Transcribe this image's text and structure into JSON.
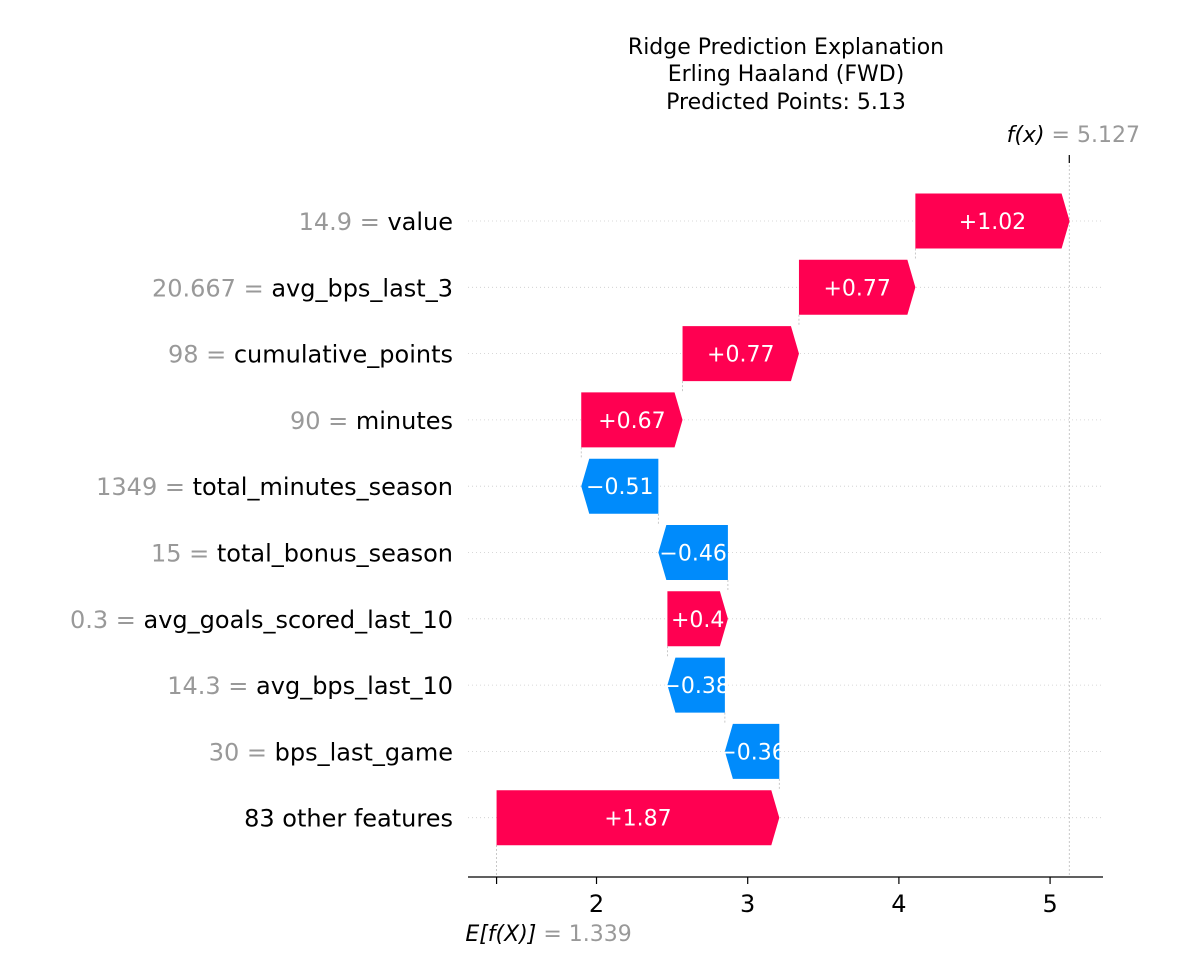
{
  "chart_data": {
    "type": "waterfall",
    "title_lines": [
      "Ridge Prediction Explanation",
      "Erling Haaland (FWD)",
      "Predicted Points: 5.13"
    ],
    "base_value": 1.339,
    "final_value": 5.127,
    "fx_label": "f(x)",
    "fx_value_text": "= 5.127",
    "efx_label": "E[f(X)]",
    "efx_value_text": "= 1.339",
    "xlim": [
      1.15,
      5.35
    ],
    "xticks": [
      2,
      3,
      4,
      5
    ],
    "colors": {
      "positive": "#ff0051",
      "negative": "#008bfb"
    },
    "features": [
      {
        "value": "14.9",
        "name": "value",
        "contribution": 1.02,
        "label": "+1.02"
      },
      {
        "value": "20.667",
        "name": "avg_bps_last_3",
        "contribution": 0.77,
        "label": "+0.77"
      },
      {
        "value": "98",
        "name": "cumulative_points",
        "contribution": 0.77,
        "label": "+0.77"
      },
      {
        "value": "90",
        "name": "minutes",
        "contribution": 0.67,
        "label": "+0.67"
      },
      {
        "value": "1349",
        "name": "total_minutes_season",
        "contribution": -0.51,
        "label": "−0.51"
      },
      {
        "value": "15",
        "name": "total_bonus_season",
        "contribution": -0.46,
        "label": "−0.46"
      },
      {
        "value": "0.3",
        "name": "avg_goals_scored_last_10",
        "contribution": 0.4,
        "label": "+0.4"
      },
      {
        "value": "14.3",
        "name": "avg_bps_last_10",
        "contribution": -0.38,
        "label": "−0.38"
      },
      {
        "value": "30",
        "name": "bps_last_game",
        "contribution": -0.36,
        "label": "−0.36"
      },
      {
        "value": "",
        "name": "83 other features",
        "contribution": 1.87,
        "label": "+1.87"
      }
    ]
  }
}
